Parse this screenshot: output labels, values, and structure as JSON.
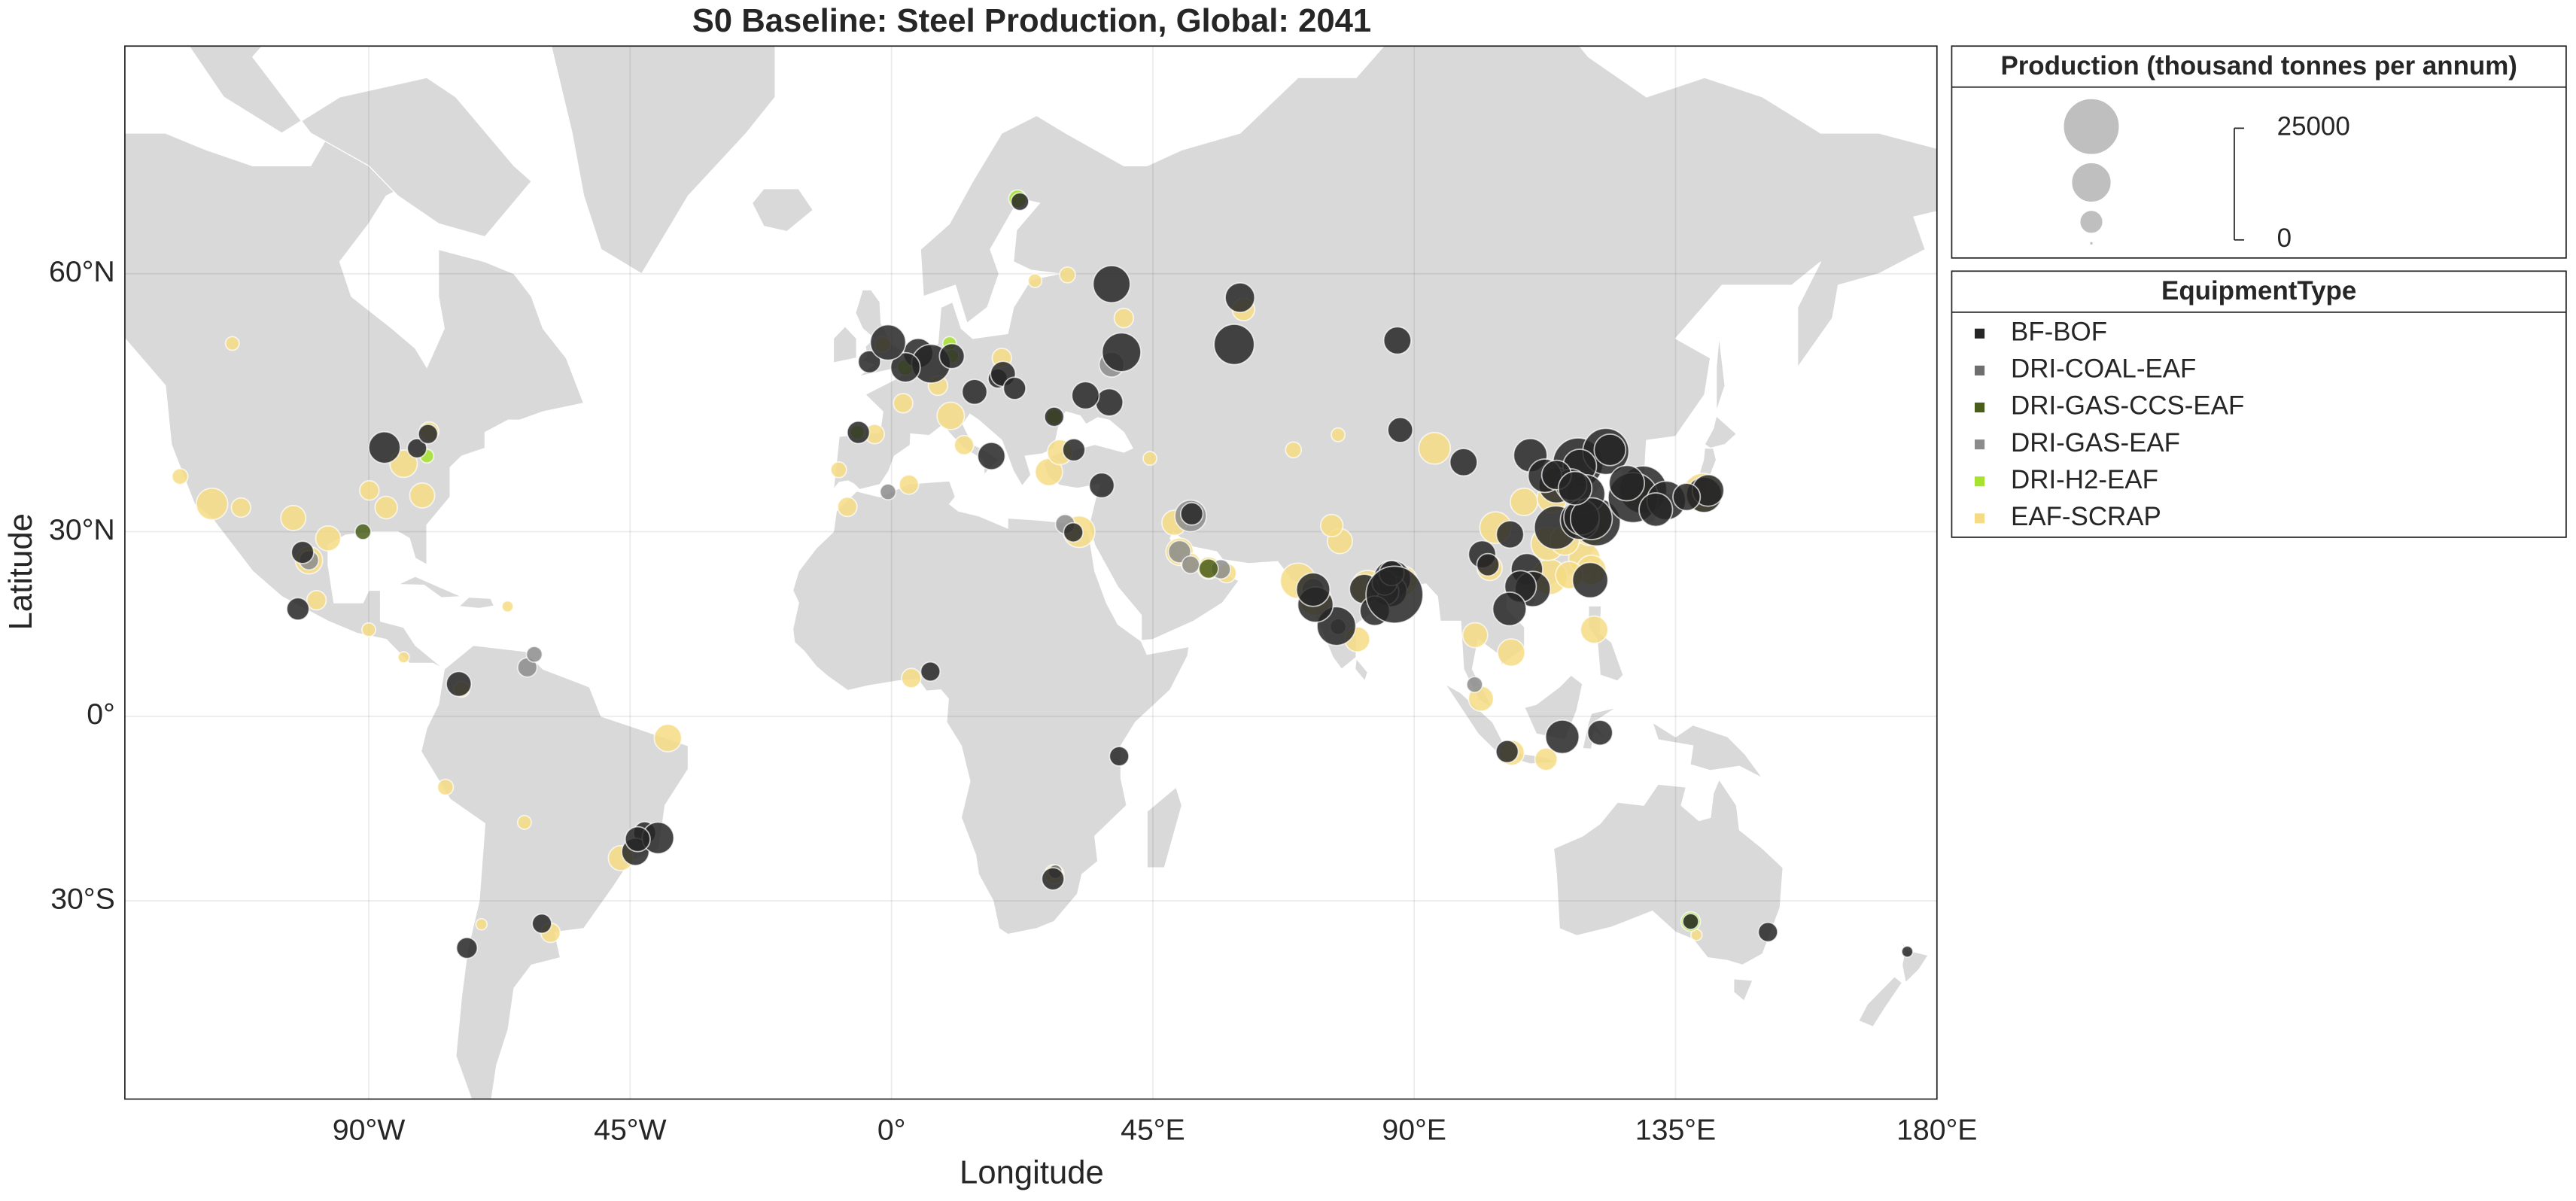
{
  "chart_data": {
    "type": "bubble_map",
    "title": "S0 Baseline: Steel Production, Global: 2041",
    "x_label": "Longitude",
    "y_label": "Latitude",
    "projection": "mercator",
    "grid": true,
    "xlim": [
      -132,
      180
    ],
    "ylim": [
      -54.5,
      74.5
    ],
    "xticks": [
      {
        "value": -90,
        "label": "90°W"
      },
      {
        "value": -45,
        "label": "45°W"
      },
      {
        "value": 0,
        "label": "0°"
      },
      {
        "value": 45,
        "label": "45°E"
      },
      {
        "value": 90,
        "label": "90°E"
      },
      {
        "value": 135,
        "label": "135°E"
      },
      {
        "value": 180,
        "label": "180°E"
      }
    ],
    "yticks": [
      {
        "value": 60,
        "label": "60°N"
      },
      {
        "value": 30,
        "label": "30°N"
      },
      {
        "value": 0,
        "label": "0°"
      },
      {
        "value": -30,
        "label": "30°S"
      }
    ],
    "size_legend": {
      "title": "Production (thousand tonnes per annum)",
      "sizes": [
        25000,
        12500,
        4200,
        100
      ],
      "ticks": [
        0,
        25000
      ]
    },
    "legend_title": "EquipmentType",
    "series": [
      {
        "name": "BF-BOF",
        "color": "#262626",
        "x": [
          118.2,
          121.4,
          114.4,
          123,
          123.7,
          114.5,
          118.5,
          119.5,
          117,
          118.5,
          110,
          112.5,
          106.5,
          101.7,
          109.4,
          110.4,
          108.3,
          102.7,
          87.6,
          98.5,
          118.8,
          120.5,
          114.5,
          117.7,
          129.4,
          127.7,
          126.6,
          139.9,
          133.4,
          140.6,
          131.6,
          136.9,
          86.2,
          86,
          85,
          81.4,
          84.9,
          86.1,
          83.2,
          76.6,
          73,
          72.6,
          86.6,
          59,
          37.9,
          39.6,
          60,
          87.1,
          37.5,
          33.4,
          4.6,
          6.8,
          2.4,
          17.2,
          14.3,
          -5.7,
          18.3,
          28,
          19.2,
          21.2,
          10.4,
          -3.8,
          22.1,
          31.4,
          36.2,
          51.7,
          -87.3,
          -81.7,
          -79.8,
          -42.5,
          -44.1,
          -40.2,
          -43.7,
          -101.4,
          -102.2,
          -60.2,
          -73.1,
          106,
          106.4,
          120.3,
          115.5,
          122,
          6.7,
          31.3,
          27.8,
          39.2,
          150.9,
          137.6,
          174.9,
          -0.6,
          -74.5
        ],
        "y": [
          39.6,
          31.4,
          30.6,
          41.1,
          41.3,
          36.6,
          39.2,
          35.4,
          36.7,
          31.7,
          40.6,
          37.9,
          29.6,
          26.6,
          24.3,
          21.2,
          21.6,
          25,
          43.8,
          39.7,
          32.1,
          31.9,
          38,
          36.2,
          36,
          34.9,
          36.9,
          35.3,
          34.5,
          35.9,
          33.2,
          35,
          22.8,
          20.9,
          20.8,
          21.2,
          22.2,
          23.7,
          17.7,
          15.2,
          18.7,
          21.1,
          20.3,
          53.4,
          59.1,
          52.6,
          57.9,
          53.8,
          47.1,
          47.9,
          52.5,
          51.4,
          51,
          40.5,
          48.3,
          43.5,
          49.8,
          45.4,
          50.3,
          48.7,
          52.2,
          51.6,
          65.6,
          41.3,
          36.6,
          32.6,
          41.6,
          41.5,
          43.3,
          -19.5,
          -22.5,
          -20.3,
          -20.5,
          26.9,
          18,
          -33.3,
          -36.7,
          -6,
          18,
          22.6,
          -3.5,
          -2.8,
          7.6,
          29.9,
          -26.7,
          -6.8,
          -34.5,
          -33,
          -37.2,
          53.6,
          5.5
        ],
        "size": [
          20000,
          18000,
          15000,
          17000,
          8000,
          10000,
          9000,
          12000,
          8000,
          12000,
          9000,
          9000,
          6000,
          6000,
          8000,
          10000,
          8000,
          4000,
          5000,
          6000,
          10000,
          14000,
          7000,
          9000,
          18000,
          20000,
          10000,
          10000,
          12000,
          8000,
          9000,
          6000,
          11000,
          8000,
          6000,
          7000,
          5000,
          5000,
          7000,
          12000,
          10000,
          9000,
          26000,
          13000,
          11000,
          12000,
          7000,
          6000,
          6000,
          6000,
          7000,
          12000,
          7000,
          6000,
          5000,
          4000,
          3000,
          3000,
          5000,
          4000,
          5000,
          4000,
          2500,
          4000,
          5000,
          4000,
          8000,
          3000,
          3000,
          4000,
          6000,
          8000,
          5000,
          4000,
          4000,
          3000,
          3500,
          4000,
          9000,
          10000,
          9000,
          5000,
          3000,
          3000,
          4000,
          3000,
          3000,
          2000,
          1000,
          10000,
          5000
        ]
      },
      {
        "name": "DRI-COAL-EAF",
        "color": "#6e6e6e",
        "x": [
          83.4,
          85.1,
          86.5,
          28.2,
          76.9
        ],
        "y": [
          21.9,
          21.5,
          23.8,
          -25.6,
          15.1
        ],
        "size": [
          3000,
          3000,
          2500,
          1500,
          2000
        ]
      },
      {
        "name": "DRI-GAS-CCS-EAF",
        "color": "#4a5e1a",
        "x": [
          54.6,
          -91
        ],
        "y": [
          24.4,
          30
        ],
        "size": [
          3000,
          2000
        ]
      },
      {
        "name": "DRI-GAS-EAF",
        "color": "#8c8c8c",
        "x": [
          49.6,
          51.5,
          29.9,
          56.7,
          -100.3,
          -62.7,
          -61.5,
          72.6,
          37.9,
          -0.6,
          51.5,
          100.4
        ],
        "y": [
          27,
          32.3,
          31.1,
          24.3,
          25.7,
          8.3,
          10.5,
          21.1,
          51.3,
          35.7,
          25,
          5.4
        ],
        "size": [
          4000,
          8000,
          3000,
          3000,
          3000,
          3000,
          2000,
          4000,
          5000,
          2000,
          2500,
          2000
        ]
      },
      {
        "name": "DRI-H2-EAF",
        "color": "#a6e22e",
        "x": [
          21.7,
          10,
          -5.9,
          28,
          137.6,
          114,
          -80,
          2.4,
          10.4
        ],
        "y": [
          65.8,
          53.5,
          43.5,
          45.4,
          -33,
          38,
          40.5,
          51,
          52.2
        ],
        "size": [
          2500,
          1500,
          1500,
          2000,
          3000,
          1500,
          1500,
          2000,
          1500
        ]
      },
      {
        "name": "EAF-SCRAP",
        "color": "#f5dc84",
        "x": [
          -89.9,
          -97,
          -117,
          -103,
          -100.3,
          -99,
          -46.6,
          -38.5,
          -2.9,
          10.2,
          2,
          8,
          -1.5,
          19,
          27.1,
          29,
          49.6,
          54.6,
          48.7,
          51.5,
          57.7,
          73,
          70,
          82,
          88,
          77.2,
          75.8,
          80.2,
          113.3,
          119.3,
          120,
          104,
          108.9,
          120.2,
          113.7,
          103,
          93.5,
          139.7,
          129,
          120.5,
          106.7,
          100.5,
          121,
          101.5,
          106.8,
          112.7,
          60.6,
          32.3,
          3,
          -7.6,
          28,
          3.4,
          -70.6,
          -58.7,
          -74,
          -76.8,
          138.6,
          -79.6,
          -113.5,
          -87,
          -80.8,
          -84,
          -112,
          -122.5,
          40,
          30.3,
          12.5,
          -9.1,
          24.7,
          44.5,
          69.2,
          76.9,
          -90,
          -84,
          -66.1,
          -63.2,
          113,
          115.9,
          116.7
        ],
        "y": [
          35.9,
          29,
          34,
          32,
          25.7,
          19.4,
          -23.5,
          -3.7,
          43.3,
          45.5,
          47,
          49,
          53.4,
          52,
          38.4,
          41,
          27,
          24.5,
          31.3,
          25.3,
          23.7,
          19.5,
          22.5,
          21.5,
          22.5,
          28.6,
          30.9,
          13,
          23.1,
          26,
          32,
          30.6,
          34.3,
          30.3,
          34.8,
          24.5,
          41.5,
          35.6,
          35.1,
          24.2,
          10.8,
          13.7,
          14.6,
          3,
          -6.2,
          -7.3,
          56.8,
          30,
          36.7,
          33.6,
          -26,
          6.5,
          -33.4,
          -34.6,
          4.6,
          -12,
          -34.9,
          43.6,
          53.5,
          33.5,
          35.2,
          39.5,
          33.5,
          37.8,
          56,
          59.9,
          41.9,
          38.7,
          59.4,
          40.2,
          41.3,
          43.2,
          14.6,
          10,
          18.4,
          -17.8,
          28.2,
          28.7,
          23.4
        ],
        "size": [
          3000,
          5000,
          8000,
          5000,
          6000,
          3000,
          5000,
          6000,
          3000,
          6000,
          3000,
          3000,
          2000,
          3000,
          6000,
          5000,
          6000,
          4000,
          5000,
          3000,
          3000,
          8000,
          10000,
          9000,
          7000,
          5000,
          4000,
          5000,
          10000,
          8000,
          12000,
          8000,
          6000,
          8000,
          7000,
          5000,
          8000,
          12000,
          8000,
          7000,
          6000,
          5000,
          6000,
          5000,
          5000,
          4000,
          4000,
          8000,
          3000,
          3000,
          3000,
          3000,
          1000,
          3000,
          2000,
          2000,
          1000,
          3000,
          1500,
          4000,
          5000,
          6000,
          3000,
          2000,
          3000,
          2000,
          3000,
          2000,
          1500,
          1500,
          2000,
          1500,
          1500,
          1000,
          1000,
          1500,
          9000,
          7000,
          6000
        ]
      }
    ]
  }
}
